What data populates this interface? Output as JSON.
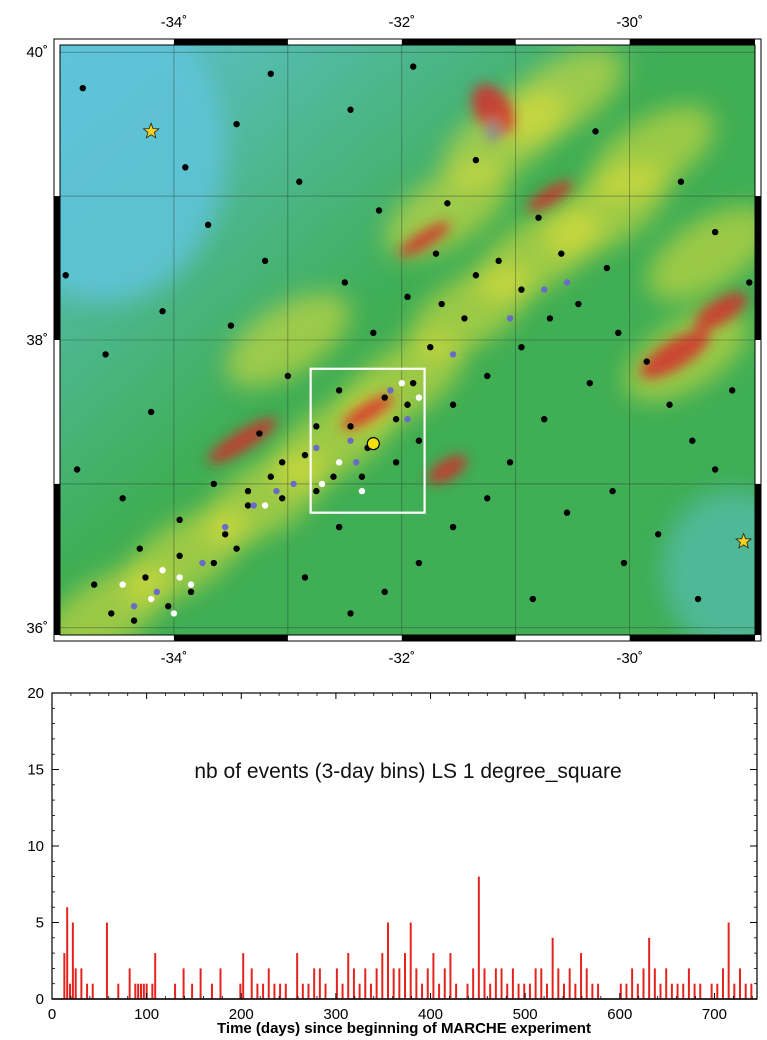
{
  "chart_data": [
    {
      "type": "map",
      "x_ticks": [
        {
          "value": -34,
          "label": "-34˚"
        },
        {
          "value": -32,
          "label": "-32˚"
        },
        {
          "value": -30,
          "label": "-30˚"
        }
      ],
      "y_ticks": [
        {
          "value": 40,
          "label": "40˚"
        },
        {
          "value": 38,
          "label": "38˚"
        },
        {
          "value": 36,
          "label": "36˚"
        }
      ],
      "xlim": [
        -35,
        -28.9
      ],
      "ylim": [
        35.95,
        40.05
      ],
      "grid": true,
      "relief_palette": {
        "deep": "#5fc3d9",
        "mid": "#3fae55",
        "shallow": "#e8e038",
        "high": "#d8262a"
      },
      "box": {
        "lon_min": -32.8,
        "lon_max": -31.8,
        "lat_min": 36.8,
        "lat_max": 37.8,
        "color": "#ffffff"
      },
      "hydrophone": {
        "lon": -32.25,
        "lat": 37.28,
        "color": "#f2e10f"
      },
      "stars": [
        {
          "lon": -34.2,
          "lat": 39.45,
          "color": "#f3d21c"
        },
        {
          "lon": -29.0,
          "lat": 36.6,
          "color": "#f3d21c"
        }
      ],
      "event_colors": {
        "black": "#000000",
        "blue": "#6a6bc6",
        "white": "#ffffff"
      },
      "events_black": [
        [
          -34.95,
          38.45
        ],
        [
          -34.1,
          38.2
        ],
        [
          -33.9,
          39.2
        ],
        [
          -34.6,
          37.9
        ],
        [
          -34.2,
          37.5
        ],
        [
          -33.7,
          38.8
        ],
        [
          -33.5,
          38.1
        ],
        [
          -33.2,
          38.55
        ],
        [
          -33.0,
          37.75
        ],
        [
          -32.9,
          39.1
        ],
        [
          -32.5,
          38.4
        ],
        [
          -32.2,
          38.9
        ],
        [
          -31.95,
          38.3
        ],
        [
          -31.7,
          38.6
        ],
        [
          -31.6,
          38.95
        ],
        [
          -31.45,
          38.15
        ],
        [
          -31.35,
          39.25
        ],
        [
          -31.15,
          38.55
        ],
        [
          -30.95,
          38.35
        ],
        [
          -30.8,
          38.85
        ],
        [
          -30.6,
          38.6
        ],
        [
          -30.45,
          38.25
        ],
        [
          -30.2,
          38.5
        ],
        [
          -30.1,
          38.05
        ],
        [
          -29.85,
          37.85
        ],
        [
          -29.65,
          37.55
        ],
        [
          -29.45,
          37.3
        ],
        [
          -29.25,
          37.1
        ],
        [
          -30.35,
          37.7
        ],
        [
          -30.75,
          37.45
        ],
        [
          -31.05,
          37.15
        ],
        [
          -31.25,
          36.9
        ],
        [
          -31.55,
          36.7
        ],
        [
          -31.85,
          36.45
        ],
        [
          -32.15,
          36.25
        ],
        [
          -32.45,
          36.1
        ],
        [
          -30.55,
          36.8
        ],
        [
          -30.15,
          36.95
        ],
        [
          -29.75,
          36.65
        ],
        [
          -29.4,
          36.2
        ],
        [
          -33.65,
          37.0
        ],
        [
          -33.95,
          36.75
        ],
        [
          -34.3,
          36.55
        ],
        [
          -34.7,
          36.3
        ],
        [
          -34.45,
          36.9
        ],
        [
          -34.85,
          37.1
        ],
        [
          -33.25,
          37.35
        ],
        [
          -33.45,
          36.55
        ],
        [
          -32.85,
          36.35
        ],
        [
          -32.55,
          36.7
        ],
        [
          -33.05,
          36.9
        ],
        [
          -32.35,
          37.05
        ],
        [
          -32.05,
          37.45
        ],
        [
          -31.9,
          37.7
        ],
        [
          -31.75,
          37.95
        ],
        [
          -32.25,
          38.05
        ],
        [
          -32.55,
          37.65
        ],
        [
          -32.75,
          37.4
        ],
        [
          -33.15,
          37.05
        ],
        [
          -33.35,
          36.85
        ],
        [
          -33.65,
          36.45
        ],
        [
          -33.85,
          36.25
        ],
        [
          -34.05,
          36.15
        ],
        [
          -34.35,
          36.05
        ],
        [
          -34.55,
          36.1
        ],
        [
          -34.25,
          36.35
        ],
        [
          -33.95,
          36.5
        ],
        [
          -33.55,
          36.65
        ],
        [
          -33.35,
          36.95
        ],
        [
          -33.05,
          37.15
        ],
        [
          -32.85,
          37.2
        ],
        [
          -32.45,
          37.4
        ],
        [
          -32.15,
          37.6
        ],
        [
          -31.95,
          37.55
        ],
        [
          -31.85,
          37.3
        ],
        [
          -32.05,
          37.15
        ],
        [
          -32.3,
          37.25
        ],
        [
          -32.6,
          37.05
        ],
        [
          -32.75,
          36.95
        ],
        [
          -31.55,
          37.55
        ],
        [
          -31.25,
          37.75
        ],
        [
          -30.95,
          37.95
        ],
        [
          -30.7,
          38.15
        ],
        [
          -31.35,
          38.45
        ],
        [
          -31.65,
          38.25
        ],
        [
          -32.45,
          39.6
        ],
        [
          -33.45,
          39.5
        ],
        [
          -34.8,
          39.75
        ],
        [
          -30.3,
          39.45
        ],
        [
          -29.55,
          39.1
        ],
        [
          -29.25,
          38.75
        ],
        [
          -28.95,
          38.4
        ],
        [
          -29.1,
          37.65
        ],
        [
          -30.05,
          36.45
        ],
        [
          -30.85,
          36.2
        ],
        [
          -33.15,
          39.85
        ],
        [
          -31.9,
          39.9
        ]
      ],
      "events_blue": [
        [
          -32.75,
          37.25
        ],
        [
          -32.4,
          37.15
        ],
        [
          -32.1,
          37.65
        ],
        [
          -31.95,
          37.45
        ],
        [
          -33.55,
          36.7
        ],
        [
          -33.3,
          36.85
        ],
        [
          -33.75,
          36.45
        ],
        [
          -34.15,
          36.25
        ],
        [
          -34.35,
          36.15
        ],
        [
          -30.55,
          38.4
        ],
        [
          -30.75,
          38.35
        ],
        [
          -32.45,
          37.3
        ],
        [
          -32.95,
          37.0
        ],
        [
          -33.1,
          36.95
        ],
        [
          -31.55,
          37.9
        ],
        [
          -31.05,
          38.15
        ]
      ],
      "events_white": [
        [
          -34.1,
          36.4
        ],
        [
          -33.95,
          36.35
        ],
        [
          -34.2,
          36.2
        ],
        [
          -34.0,
          36.1
        ],
        [
          -33.85,
          36.3
        ],
        [
          -32.7,
          37.0
        ],
        [
          -32.55,
          37.15
        ],
        [
          -32.35,
          36.95
        ],
        [
          -33.2,
          36.85
        ],
        [
          -32.0,
          37.7
        ],
        [
          -31.85,
          37.6
        ],
        [
          -34.45,
          36.3
        ]
      ]
    },
    {
      "type": "bar",
      "title": "nb of events (3-day bins) LS 1 degree_square",
      "xlabel": "Time (days) since beginning of MARCHE experiment",
      "ylabel": "",
      "xlim": [
        0,
        745
      ],
      "ylim": [
        0,
        20
      ],
      "x_ticks": [
        0,
        100,
        200,
        300,
        400,
        500,
        600,
        700
      ],
      "y_ticks": [
        0,
        5,
        10,
        15,
        20
      ],
      "bin_width_days": 3,
      "bar_color": "#e4231e",
      "bars": [
        {
          "x": 12,
          "y": 3
        },
        {
          "x": 15,
          "y": 6
        },
        {
          "x": 18,
          "y": 1
        },
        {
          "x": 21,
          "y": 5
        },
        {
          "x": 24,
          "y": 2
        },
        {
          "x": 30,
          "y": 2
        },
        {
          "x": 36,
          "y": 1
        },
        {
          "x": 42,
          "y": 1
        },
        {
          "x": 57,
          "y": 5
        },
        {
          "x": 69,
          "y": 1
        },
        {
          "x": 81,
          "y": 2
        },
        {
          "x": 87,
          "y": 1
        },
        {
          "x": 90,
          "y": 1
        },
        {
          "x": 93,
          "y": 1
        },
        {
          "x": 96,
          "y": 1
        },
        {
          "x": 99,
          "y": 1
        },
        {
          "x": 105,
          "y": 1
        },
        {
          "x": 108,
          "y": 3
        },
        {
          "x": 129,
          "y": 1
        },
        {
          "x": 138,
          "y": 2
        },
        {
          "x": 147,
          "y": 1
        },
        {
          "x": 156,
          "y": 2
        },
        {
          "x": 168,
          "y": 1
        },
        {
          "x": 177,
          "y": 2
        },
        {
          "x": 198,
          "y": 1
        },
        {
          "x": 201,
          "y": 3
        },
        {
          "x": 210,
          "y": 2
        },
        {
          "x": 216,
          "y": 1
        },
        {
          "x": 222,
          "y": 1
        },
        {
          "x": 228,
          "y": 2
        },
        {
          "x": 234,
          "y": 1
        },
        {
          "x": 240,
          "y": 1
        },
        {
          "x": 246,
          "y": 1
        },
        {
          "x": 258,
          "y": 3
        },
        {
          "x": 264,
          "y": 1
        },
        {
          "x": 270,
          "y": 1
        },
        {
          "x": 276,
          "y": 2
        },
        {
          "x": 282,
          "y": 2
        },
        {
          "x": 288,
          "y": 1
        },
        {
          "x": 300,
          "y": 2
        },
        {
          "x": 306,
          "y": 1
        },
        {
          "x": 312,
          "y": 3
        },
        {
          "x": 318,
          "y": 2
        },
        {
          "x": 324,
          "y": 1
        },
        {
          "x": 330,
          "y": 2
        },
        {
          "x": 336,
          "y": 1
        },
        {
          "x": 342,
          "y": 2
        },
        {
          "x": 348,
          "y": 3
        },
        {
          "x": 354,
          "y": 5
        },
        {
          "x": 360,
          "y": 2
        },
        {
          "x": 366,
          "y": 2
        },
        {
          "x": 372,
          "y": 3
        },
        {
          "x": 378,
          "y": 5
        },
        {
          "x": 384,
          "y": 2
        },
        {
          "x": 390,
          "y": 1
        },
        {
          "x": 396,
          "y": 2
        },
        {
          "x": 402,
          "y": 3
        },
        {
          "x": 408,
          "y": 1
        },
        {
          "x": 414,
          "y": 2
        },
        {
          "x": 420,
          "y": 3
        },
        {
          "x": 426,
          "y": 1
        },
        {
          "x": 438,
          "y": 1
        },
        {
          "x": 444,
          "y": 2
        },
        {
          "x": 450,
          "y": 8
        },
        {
          "x": 456,
          "y": 2
        },
        {
          "x": 462,
          "y": 1
        },
        {
          "x": 468,
          "y": 2
        },
        {
          "x": 474,
          "y": 2
        },
        {
          "x": 480,
          "y": 1
        },
        {
          "x": 486,
          "y": 2
        },
        {
          "x": 492,
          "y": 1
        },
        {
          "x": 498,
          "y": 1
        },
        {
          "x": 504,
          "y": 1
        },
        {
          "x": 510,
          "y": 2
        },
        {
          "x": 516,
          "y": 2
        },
        {
          "x": 522,
          "y": 1
        },
        {
          "x": 528,
          "y": 4
        },
        {
          "x": 534,
          "y": 2
        },
        {
          "x": 540,
          "y": 1
        },
        {
          "x": 546,
          "y": 2
        },
        {
          "x": 552,
          "y": 1
        },
        {
          "x": 558,
          "y": 3
        },
        {
          "x": 564,
          "y": 2
        },
        {
          "x": 570,
          "y": 1
        },
        {
          "x": 576,
          "y": 1
        },
        {
          "x": 600,
          "y": 1
        },
        {
          "x": 606,
          "y": 1
        },
        {
          "x": 612,
          "y": 2
        },
        {
          "x": 618,
          "y": 1
        },
        {
          "x": 624,
          "y": 2
        },
        {
          "x": 630,
          "y": 4
        },
        {
          "x": 636,
          "y": 2
        },
        {
          "x": 642,
          "y": 1
        },
        {
          "x": 648,
          "y": 2
        },
        {
          "x": 654,
          "y": 1
        },
        {
          "x": 660,
          "y": 1
        },
        {
          "x": 666,
          "y": 1
        },
        {
          "x": 672,
          "y": 2
        },
        {
          "x": 678,
          "y": 1
        },
        {
          "x": 684,
          "y": 1
        },
        {
          "x": 696,
          "y": 1
        },
        {
          "x": 702,
          "y": 1
        },
        {
          "x": 708,
          "y": 2
        },
        {
          "x": 714,
          "y": 5
        },
        {
          "x": 720,
          "y": 1
        },
        {
          "x": 726,
          "y": 2
        },
        {
          "x": 732,
          "y": 1
        },
        {
          "x": 738,
          "y": 1
        }
      ]
    }
  ]
}
